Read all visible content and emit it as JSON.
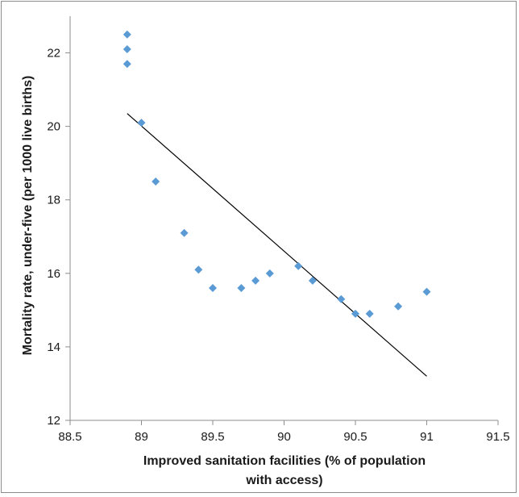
{
  "chart_data": {
    "type": "scatter",
    "title": "",
    "xlabel_lines": [
      "Improved sanitation facilities (% of population",
      "with access)"
    ],
    "ylabel": "Mortality rate, under-five (per 1000 live births)",
    "xlim": [
      88.5,
      91.5
    ],
    "ylim": [
      12,
      23
    ],
    "x_ticks": [
      88.5,
      89,
      89.5,
      90,
      90.5,
      91,
      91.5
    ],
    "y_ticks": [
      12,
      14,
      16,
      18,
      20,
      22
    ],
    "x_tick_labels": [
      "88.5",
      "89",
      "89.5",
      "90",
      "90.5",
      "91",
      "91.5"
    ],
    "y_tick_labels": [
      "12",
      "14",
      "16",
      "18",
      "20",
      "22"
    ],
    "grid": false,
    "legend": "none",
    "marker_color": "#5b9bd5",
    "trendline_color": "#000000",
    "points": [
      {
        "x": 88.9,
        "y": 22.5
      },
      {
        "x": 88.9,
        "y": 22.1
      },
      {
        "x": 88.9,
        "y": 21.7
      },
      {
        "x": 89.0,
        "y": 20.1
      },
      {
        "x": 89.1,
        "y": 18.5
      },
      {
        "x": 89.3,
        "y": 17.1
      },
      {
        "x": 89.4,
        "y": 16.1
      },
      {
        "x": 89.5,
        "y": 15.6
      },
      {
        "x": 89.7,
        "y": 15.6
      },
      {
        "x": 89.8,
        "y": 15.8
      },
      {
        "x": 89.9,
        "y": 16.0
      },
      {
        "x": 90.1,
        "y": 16.2
      },
      {
        "x": 90.2,
        "y": 15.8
      },
      {
        "x": 90.4,
        "y": 15.3
      },
      {
        "x": 90.5,
        "y": 14.9
      },
      {
        "x": 90.6,
        "y": 14.9
      },
      {
        "x": 90.8,
        "y": 15.1
      },
      {
        "x": 91.0,
        "y": 15.5
      }
    ],
    "trendline": {
      "x": [
        88.9,
        91.0
      ],
      "y": [
        20.35,
        13.2
      ]
    }
  }
}
